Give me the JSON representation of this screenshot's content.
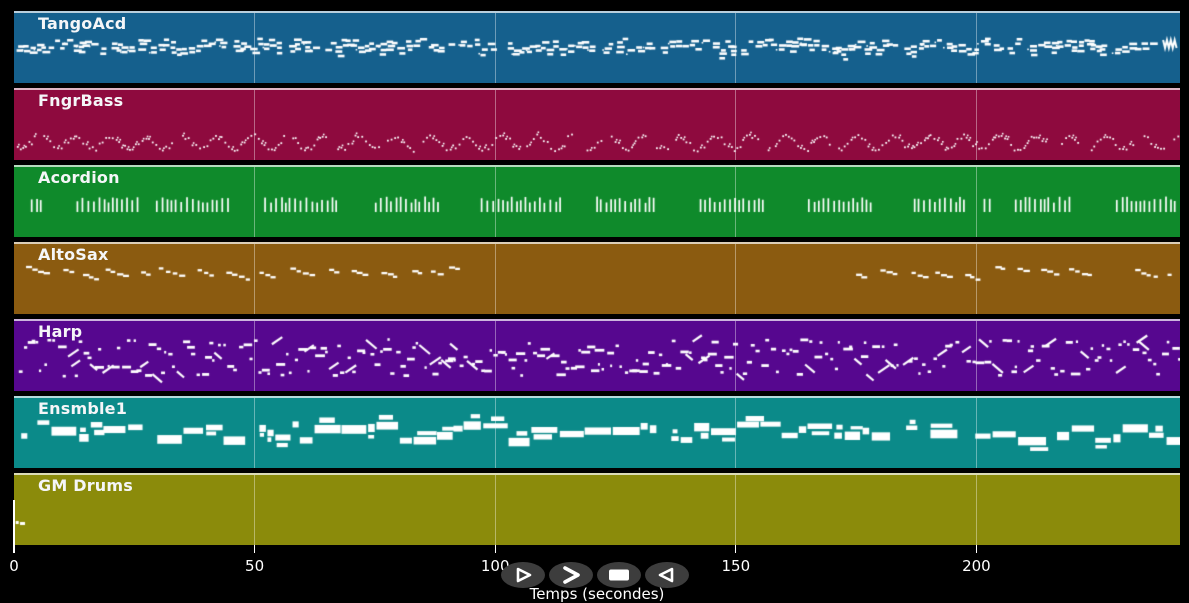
{
  "window": {
    "background": "#000000"
  },
  "axis": {
    "xlabel": "Temps (secondes)",
    "ticks": [
      "0",
      "50",
      "100",
      "150",
      "200"
    ],
    "tick_color": "#ffffff",
    "label_color": "#ffffff"
  },
  "controls": {
    "button_background": "#3d3d3d",
    "glyph_color": "#ffffff",
    "buttons": [
      {
        "id": "play",
        "glyph": "triangle-right-outline"
      },
      {
        "id": "fast-forward",
        "glyph": "chevron-right"
      },
      {
        "id": "stop",
        "glyph": "filled-square"
      },
      {
        "id": "rewind",
        "glyph": "triangle-left-outline"
      }
    ]
  },
  "style_colors": {
    "spine": "rgba(255,255,255,0.7)",
    "grid": "rgba(255,255,255,0.38)",
    "title": "#f5f6f8",
    "note": "#ffffff"
  },
  "chart_data": {
    "type": "scatter",
    "subtype": "midi-track-overview",
    "title": "",
    "xlabel": "Temps (secondes)",
    "x_ticks": [
      0,
      50,
      100,
      150,
      200
    ],
    "x_range": [
      0,
      242.3
    ],
    "grid": true,
    "legend": "track names drawn inside each colored band, top-left",
    "note_color": "#ffffff",
    "playhead": {
      "x_seconds": 0,
      "track": "GM Drums"
    },
    "tracks": [
      {
        "name": "TangoAcd",
        "color": "#15608d",
        "style": "chords",
        "y_band": [
          25,
          46
        ],
        "active": [
          [
            0.8,
            238.5
          ]
        ],
        "end_squiggle": true,
        "seed": 11
      },
      {
        "name": "FngrBass",
        "color": "#8e0a3e",
        "style": "wavedots",
        "y_band": [
          40,
          62
        ],
        "active": [
          [
            0.6,
            242
          ]
        ],
        "seed": 22
      },
      {
        "name": "Acordion",
        "color": "#0f8a2b",
        "style": "ticks",
        "y_band": [
          21,
          45
        ],
        "active": [
          [
            3.5,
            6
          ],
          [
            13,
            26
          ],
          [
            29.5,
            45
          ],
          [
            52,
            67
          ],
          [
            75,
            88
          ],
          [
            97,
            113.5
          ],
          [
            121,
            133
          ],
          [
            142.5,
            156
          ],
          [
            165,
            178
          ],
          [
            187,
            197.5
          ],
          [
            201.5,
            203.5
          ],
          [
            208,
            220
          ],
          [
            229,
            242
          ]
        ],
        "seed": 33
      },
      {
        "name": "AltoSax",
        "color": "#8b5b10",
        "style": "dashes",
        "y_band": [
          21,
          39
        ],
        "active": [
          [
            2.5,
            93
          ],
          [
            175,
            224
          ],
          [
            233,
            240.5
          ]
        ],
        "seed": 44
      },
      {
        "name": "Harp",
        "color": "#56078f",
        "style": "mixed",
        "y_band": [
          17,
          57
        ],
        "active": [
          [
            1,
            242
          ]
        ],
        "seed": 55
      },
      {
        "name": "Ensmble1",
        "color": "#0b8a89",
        "style": "blocks",
        "y_band": [
          22,
          52
        ],
        "active": [
          [
            1.5,
            242
          ]
        ],
        "seed": 66
      },
      {
        "name": "GM Drums",
        "color": "#8b8b0b",
        "style": "sparse",
        "y_band": [
          44,
          52
        ],
        "active": [
          [
            0.3,
            1.9
          ]
        ],
        "notes": [
          [
            0.35,
            46,
            3,
            3
          ],
          [
            1.25,
            47,
            5,
            3
          ]
        ],
        "seed": 77
      }
    ]
  }
}
